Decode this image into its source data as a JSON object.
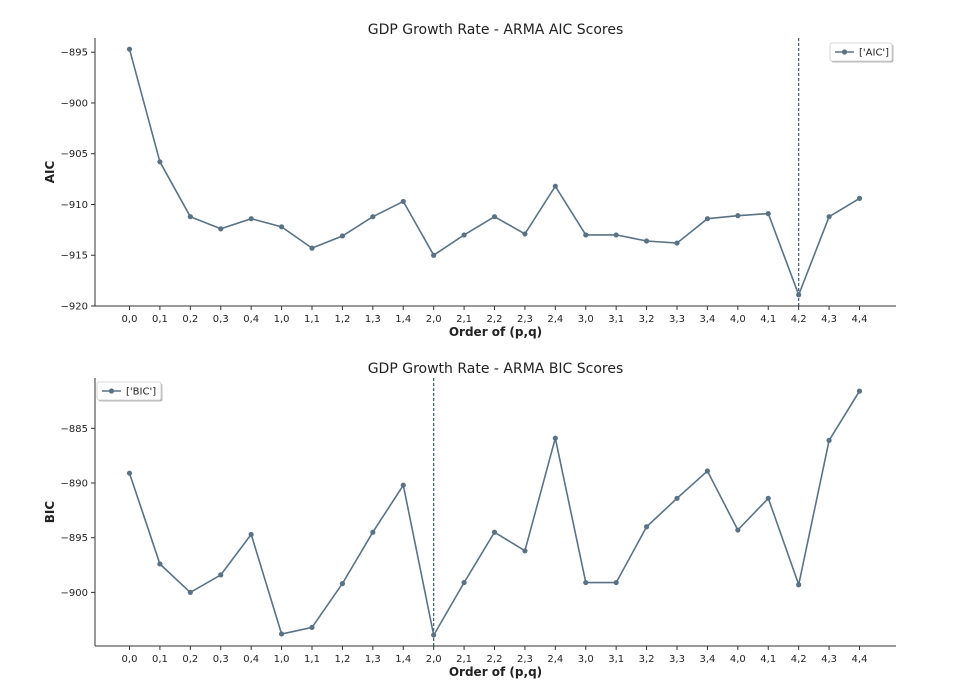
{
  "chart_data": [
    {
      "type": "line",
      "title": "GDP Growth Rate - ARMA AIC Scores",
      "xlabel": "Order of (p,q)",
      "ylabel": "AIC",
      "categories": [
        "0,0",
        "0,1",
        "0,2",
        "0,3",
        "0,4",
        "1,0",
        "1,1",
        "1,2",
        "1,3",
        "1,4",
        "2,0",
        "2,1",
        "2,2",
        "2,3",
        "2,4",
        "3,0",
        "3,1",
        "3,2",
        "3,3",
        "3,4",
        "4,0",
        "4,1",
        "4,2",
        "4,3",
        "4,4"
      ],
      "series": [
        {
          "name": "['AIC']",
          "values": [
            -894.7,
            -905.8,
            -911.2,
            -912.4,
            -911.4,
            -912.2,
            -914.3,
            -913.1,
            -911.2,
            -909.7,
            -915.0,
            -913.0,
            -911.2,
            -912.9,
            -908.2,
            -913.0,
            -913.0,
            -913.6,
            -913.8,
            -911.4,
            -911.1,
            -910.9,
            -918.9,
            -911.2,
            -909.4
          ]
        }
      ],
      "yticks": [
        -895,
        -900,
        -905,
        -910,
        -915,
        -920
      ],
      "ylim": [
        -920.0,
        -893.6
      ],
      "vline_category": "4,2",
      "legend_position": "top-right",
      "color": "#5a7384",
      "vline_color": "#3d5a6e"
    },
    {
      "type": "line",
      "title": "GDP Growth Rate - ARMA BIC Scores",
      "xlabel": "Order of (p,q)",
      "ylabel": "BIC",
      "categories": [
        "0,0",
        "0,1",
        "0,2",
        "0,3",
        "0,4",
        "1,0",
        "1,1",
        "1,2",
        "1,3",
        "1,4",
        "2,0",
        "2,1",
        "2,2",
        "2,3",
        "2,4",
        "3,0",
        "3,1",
        "3,2",
        "3,3",
        "3,4",
        "4,0",
        "4,1",
        "4,2",
        "4,3",
        "4,4"
      ],
      "series": [
        {
          "name": "['BIC']",
          "values": [
            -889.1,
            -897.4,
            -900.0,
            -898.4,
            -894.7,
            -903.8,
            -903.2,
            -899.2,
            -894.5,
            -890.2,
            -903.9,
            -899.1,
            -894.5,
            -896.2,
            -885.9,
            -899.1,
            -899.1,
            -894.0,
            -891.4,
            -888.9,
            -894.3,
            -891.4,
            -899.3,
            -886.1,
            -881.6
          ]
        }
      ],
      "yticks": [
        -885,
        -890,
        -895,
        -900
      ],
      "ylim": [
        -904.9,
        -880.4
      ],
      "vline_category": "2,0",
      "legend_position": "top-left",
      "color": "#5a7384",
      "vline_color": "#3d5a6e"
    }
  ]
}
